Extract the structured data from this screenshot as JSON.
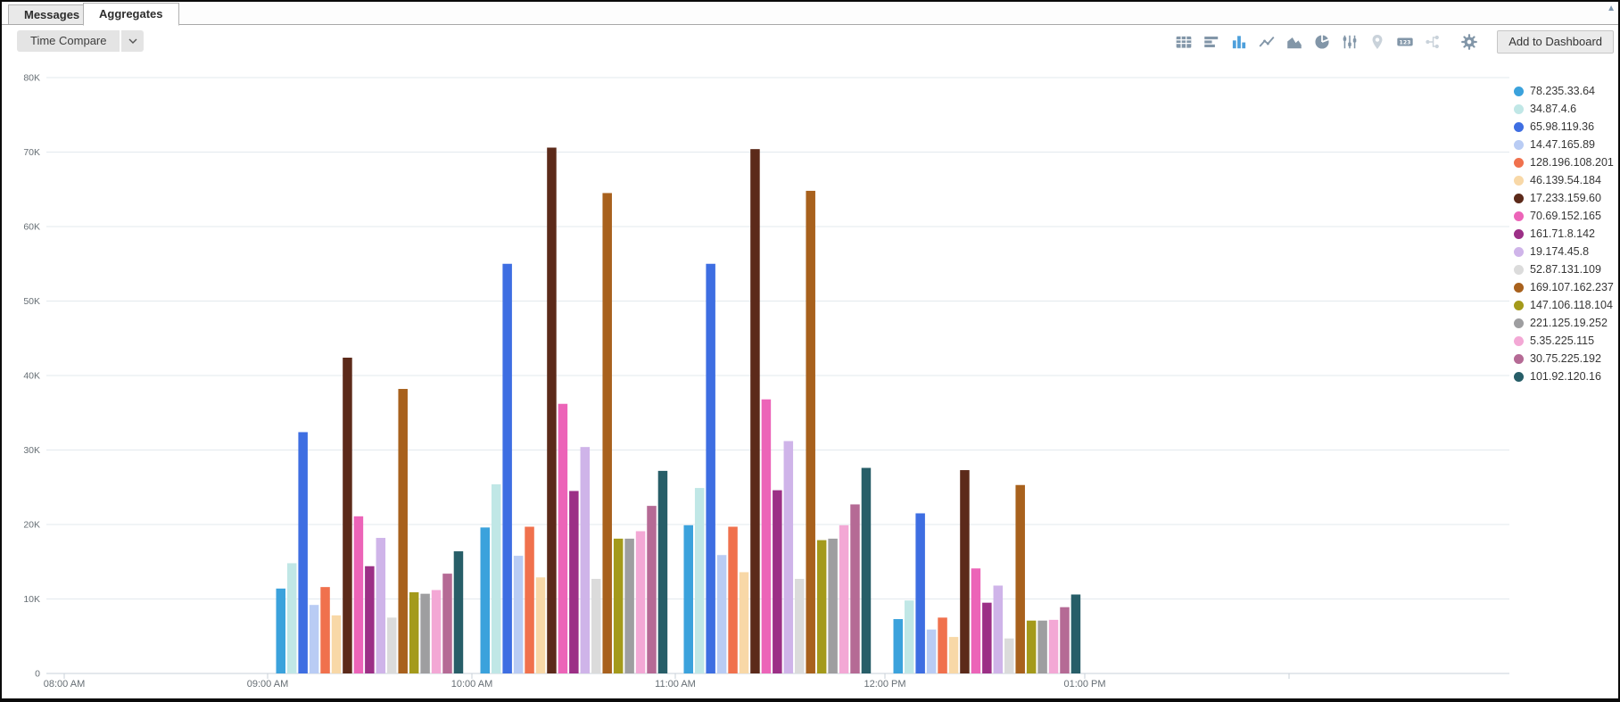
{
  "tabs": {
    "messages": "Messages",
    "aggregates": "Aggregates"
  },
  "scrollbar": {
    "up_arrow": "▲"
  },
  "toolbar": {
    "time_compare_label": "Time Compare",
    "add_to_dashboard_label": "Add to Dashboard",
    "chart_type_icons": [
      {
        "name": "table-icon",
        "state": "normal"
      },
      {
        "name": "bar-chart-icon",
        "state": "normal"
      },
      {
        "name": "column-chart-icon",
        "state": "active"
      },
      {
        "name": "line-chart-icon",
        "state": "normal"
      },
      {
        "name": "area-chart-icon",
        "state": "normal"
      },
      {
        "name": "pie-chart-icon",
        "state": "normal"
      },
      {
        "name": "sliders-icon",
        "state": "normal"
      },
      {
        "name": "map-pin-icon",
        "state": "disabled"
      },
      {
        "name": "single-value-icon",
        "state": "normal"
      },
      {
        "name": "flow-diagram-icon",
        "state": "disabled"
      },
      {
        "name": "gear-icon",
        "state": "normal"
      }
    ]
  },
  "colors": {
    "icon": "#8296A8",
    "active_icon": "#4D9FDB",
    "disabled_icon": "#C9D2DA"
  },
  "chart_data": {
    "type": "bar",
    "title": "",
    "xlabel": "",
    "ylabel": "",
    "ylim": [
      0,
      80000
    ],
    "grid": true,
    "legend_position": "right",
    "y_tick_labels": [
      "0",
      "10K",
      "20K",
      "30K",
      "40K",
      "50K",
      "60K",
      "70K",
      "80K"
    ],
    "x_axis_labels": [
      "08:00 AM",
      "09:00 AM",
      "10:00 AM",
      "11:00 AM",
      "12:00 PM",
      "01:00 PM"
    ],
    "categories": [
      "09:00 AM",
      "10:00 AM",
      "11:00 AM",
      "12:00 PM"
    ],
    "series": [
      {
        "name": "78.235.33.64",
        "color": "#3BA2DC",
        "values": [
          11400,
          19600,
          19900,
          7300
        ]
      },
      {
        "name": "34.87.4.6",
        "color": "#C0E7E6",
        "values": [
          14800,
          25400,
          24900,
          9800
        ]
      },
      {
        "name": "65.98.119.36",
        "color": "#3E6EE2",
        "values": [
          32400,
          55000,
          55000,
          21500
        ]
      },
      {
        "name": "14.47.165.89",
        "color": "#B9CCF4",
        "values": [
          9200,
          15800,
          15900,
          5900
        ]
      },
      {
        "name": "128.196.108.201",
        "color": "#F0714D",
        "values": [
          11600,
          19700,
          19700,
          7500
        ]
      },
      {
        "name": "46.139.54.184",
        "color": "#F8D8A7",
        "values": [
          7800,
          12900,
          13600,
          4900
        ]
      },
      {
        "name": "17.233.159.60",
        "color": "#5C2A1A",
        "values": [
          42400,
          70600,
          70400,
          27300
        ]
      },
      {
        "name": "70.69.152.165",
        "color": "#EC64B8",
        "values": [
          21100,
          36200,
          36800,
          14100
        ]
      },
      {
        "name": "161.71.8.142",
        "color": "#9C2F86",
        "values": [
          14400,
          24500,
          24600,
          9500
        ]
      },
      {
        "name": "19.174.45.8",
        "color": "#CFB4E9",
        "values": [
          18200,
          30400,
          31200,
          11800
        ]
      },
      {
        "name": "52.87.131.109",
        "color": "#DBDBDB",
        "values": [
          7500,
          12700,
          12700,
          4700
        ]
      },
      {
        "name": "169.107.162.237",
        "color": "#A8611D",
        "values": [
          38200,
          64500,
          64800,
          25300
        ]
      },
      {
        "name": "147.106.118.104",
        "color": "#A49A1B",
        "values": [
          10900,
          18100,
          17900,
          7100
        ]
      },
      {
        "name": "221.125.19.252",
        "color": "#9E9EA0",
        "values": [
          10700,
          18100,
          18100,
          7100
        ]
      },
      {
        "name": "5.35.225.115",
        "color": "#F3A8D5",
        "values": [
          11200,
          19100,
          19900,
          7200
        ]
      },
      {
        "name": "30.75.225.192",
        "color": "#B56A95",
        "values": [
          13400,
          22500,
          22700,
          8900
        ]
      },
      {
        "name": "101.92.120.16",
        "color": "#275E68",
        "values": [
          16400,
          27200,
          27600,
          10600
        ]
      }
    ]
  }
}
